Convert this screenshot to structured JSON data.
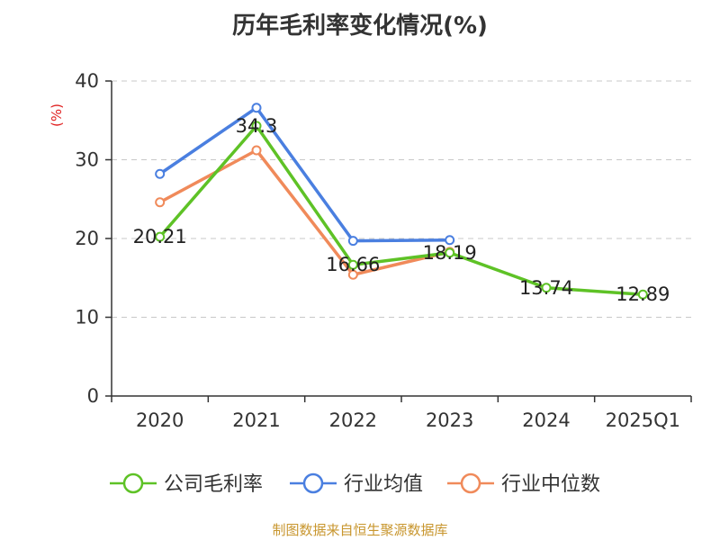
{
  "chart_data": {
    "type": "line",
    "title": "历年毛利率变化情况(%)",
    "ylabel": "(%)",
    "ylim": [
      0,
      40
    ],
    "yticks": [
      "0",
      "10",
      "20",
      "30",
      "40"
    ],
    "grid": true,
    "legend_position": "bottom",
    "categories": [
      "2020",
      "2021",
      "2022",
      "2023",
      "2024",
      "2025Q1"
    ],
    "series": [
      {
        "name": "公司毛利率",
        "color": "#5ec226",
        "values": [
          20.21,
          34.3,
          16.66,
          18.19,
          13.74,
          12.89
        ],
        "labels": [
          "20.21",
          "34.3",
          "16.66",
          "18.19",
          "13.74",
          "12.89"
        ]
      },
      {
        "name": "行业均值",
        "color": "#4a7fe0",
        "values": [
          28.2,
          36.6,
          19.7,
          19.8,
          null,
          null
        ]
      },
      {
        "name": "行业中位数",
        "color": "#f08a5a",
        "values": [
          24.6,
          31.2,
          15.4,
          18.3,
          null,
          null
        ]
      }
    ]
  },
  "footer": "制图数据来自恒生聚源数据库"
}
